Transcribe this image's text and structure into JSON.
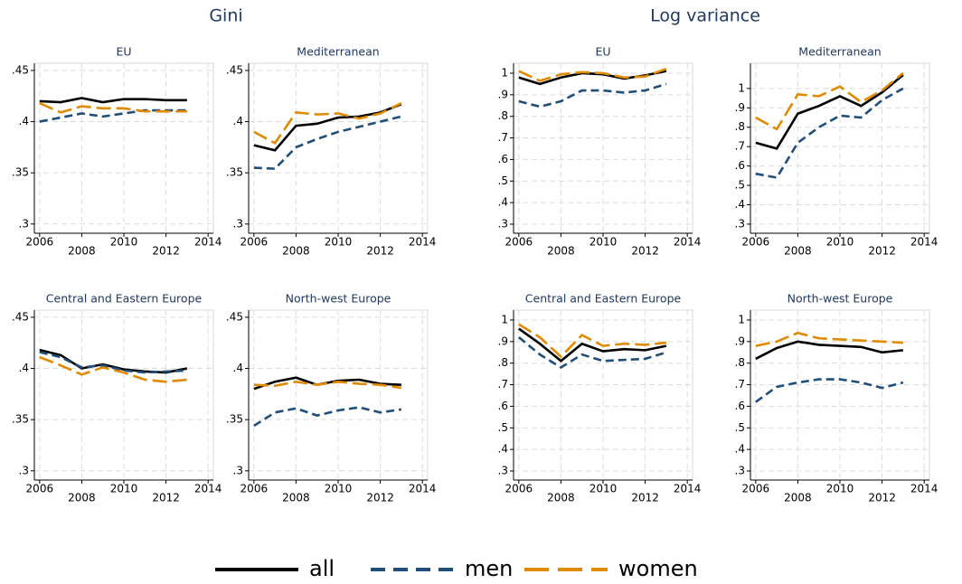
{
  "group_titles": [
    "Gini",
    "Log variance"
  ],
  "chart_data": [
    {
      "type": "line",
      "title": "EU",
      "x": [
        2006,
        2007,
        2008,
        2009,
        2010,
        2011,
        2012,
        2013
      ],
      "xlim": [
        2005.75,
        2014.25
      ],
      "xticks": [
        2006,
        2008,
        2010,
        2012,
        2014
      ],
      "ylim": [
        0.291,
        0.457
      ],
      "yticks": [
        {
          "value": 0.3,
          "label": ".3"
        },
        {
          "value": 0.35,
          "label": ".35"
        },
        {
          "value": 0.4,
          "label": ".4"
        },
        {
          "value": 0.45,
          "label": ".45"
        }
      ],
      "grid": true,
      "series": [
        {
          "name": "all",
          "color": "#000000",
          "values": [
            0.42,
            0.419,
            0.423,
            0.419,
            0.422,
            0.422,
            0.421,
            0.421
          ]
        },
        {
          "name": "men",
          "color": "#1f4e79",
          "values": [
            0.4,
            0.404,
            0.408,
            0.405,
            0.408,
            0.411,
            0.411,
            0.411
          ]
        },
        {
          "name": "women",
          "color": "#e08a00",
          "values": [
            0.418,
            0.409,
            0.415,
            0.413,
            0.413,
            0.41,
            0.41,
            0.41
          ]
        }
      ]
    },
    {
      "type": "line",
      "title": "Mediterranean",
      "x": [
        2006,
        2007,
        2008,
        2009,
        2010,
        2011,
        2012,
        2013
      ],
      "xlim": [
        2005.75,
        2014.25
      ],
      "xticks": [
        2006,
        2008,
        2010,
        2012,
        2014
      ],
      "ylim": [
        0.291,
        0.457
      ],
      "yticks": [
        {
          "value": 0.3,
          "label": ".3"
        },
        {
          "value": 0.35,
          "label": ".35"
        },
        {
          "value": 0.4,
          "label": ".4"
        },
        {
          "value": 0.45,
          "label": ".45"
        }
      ],
      "grid": true,
      "series": [
        {
          "name": "all",
          "color": "#000000",
          "values": [
            0.377,
            0.372,
            0.396,
            0.398,
            0.404,
            0.405,
            0.409,
            0.417
          ]
        },
        {
          "name": "men",
          "color": "#1f4e79",
          "values": [
            0.355,
            0.354,
            0.375,
            0.383,
            0.39,
            0.395,
            0.4,
            0.405
          ]
        },
        {
          "name": "women",
          "color": "#e08a00",
          "values": [
            0.39,
            0.379,
            0.409,
            0.407,
            0.408,
            0.403,
            0.408,
            0.418
          ]
        }
      ]
    },
    {
      "type": "line",
      "title": "Central and Eastern Europe",
      "x": [
        2006,
        2007,
        2008,
        2009,
        2010,
        2011,
        2012,
        2013
      ],
      "xlim": [
        2005.75,
        2014.25
      ],
      "xticks": [
        2006,
        2008,
        2010,
        2012,
        2014
      ],
      "ylim": [
        0.291,
        0.457
      ],
      "yticks": [
        {
          "value": 0.3,
          "label": ".3"
        },
        {
          "value": 0.35,
          "label": ".35"
        },
        {
          "value": 0.4,
          "label": ".4"
        },
        {
          "value": 0.45,
          "label": ".45"
        }
      ],
      "grid": true,
      "series": [
        {
          "name": "all",
          "color": "#000000",
          "values": [
            0.418,
            0.413,
            0.4,
            0.404,
            0.399,
            0.397,
            0.396,
            0.4
          ]
        },
        {
          "name": "men",
          "color": "#1f4e79",
          "values": [
            0.416,
            0.411,
            0.401,
            0.403,
            0.398,
            0.396,
            0.397,
            0.398
          ]
        },
        {
          "name": "women",
          "color": "#e08a00",
          "values": [
            0.411,
            0.403,
            0.394,
            0.401,
            0.396,
            0.389,
            0.387,
            0.389
          ]
        }
      ]
    },
    {
      "type": "line",
      "title": "North-west Europe",
      "x": [
        2006,
        2007,
        2008,
        2009,
        2010,
        2011,
        2012,
        2013
      ],
      "xlim": [
        2005.75,
        2014.25
      ],
      "xticks": [
        2006,
        2008,
        2010,
        2012,
        2014
      ],
      "ylim": [
        0.291,
        0.457
      ],
      "yticks": [
        {
          "value": 0.3,
          "label": ".3"
        },
        {
          "value": 0.35,
          "label": ".35"
        },
        {
          "value": 0.4,
          "label": ".4"
        },
        {
          "value": 0.45,
          "label": ".45"
        }
      ],
      "grid": true,
      "series": [
        {
          "name": "all",
          "color": "#000000",
          "values": [
            0.38,
            0.387,
            0.391,
            0.384,
            0.388,
            0.389,
            0.385,
            0.384
          ]
        },
        {
          "name": "men",
          "color": "#1f4e79",
          "values": [
            0.344,
            0.357,
            0.361,
            0.354,
            0.359,
            0.362,
            0.357,
            0.36
          ]
        },
        {
          "name": "women",
          "color": "#e08a00",
          "values": [
            0.384,
            0.383,
            0.387,
            0.384,
            0.387,
            0.385,
            0.384,
            0.381
          ]
        }
      ]
    },
    {
      "type": "line",
      "title": "EU",
      "x": [
        2006,
        2007,
        2008,
        2009,
        2010,
        2011,
        2012,
        2013
      ],
      "xlim": [
        2005.75,
        2014.25
      ],
      "xticks": [
        2006,
        2008,
        2010,
        2012,
        2014
      ],
      "ylim": [
        0.258,
        1.046
      ],
      "yticks": [
        {
          "value": 0.3,
          "label": ".3"
        },
        {
          "value": 0.4,
          "label": ".4"
        },
        {
          "value": 0.5,
          "label": ".5"
        },
        {
          "value": 0.6,
          "label": ".6"
        },
        {
          "value": 0.7,
          "label": ".7"
        },
        {
          "value": 0.8,
          "label": ".8"
        },
        {
          "value": 0.9,
          "label": ".9"
        },
        1
      ],
      "grid": true,
      "series": [
        {
          "name": "all",
          "color": "#000000",
          "values": [
            0.98,
            0.95,
            0.98,
            1.0,
            0.995,
            0.975,
            0.99,
            1.01
          ]
        },
        {
          "name": "men",
          "color": "#1f4e79",
          "values": [
            0.87,
            0.845,
            0.87,
            0.92,
            0.92,
            0.91,
            0.92,
            0.95
          ]
        },
        {
          "name": "women",
          "color": "#e08a00",
          "values": [
            1.01,
            0.965,
            0.995,
            1.005,
            1.0,
            0.98,
            0.985,
            1.02
          ]
        }
      ]
    },
    {
      "type": "line",
      "title": "Mediterranean",
      "x": [
        2006,
        2007,
        2008,
        2009,
        2010,
        2011,
        2012,
        2013
      ],
      "xlim": [
        2005.75,
        2014.25
      ],
      "xticks": [
        2006,
        2008,
        2010,
        2012,
        2014
      ],
      "ylim": [
        0.253,
        1.13
      ],
      "yticks": [
        {
          "value": 0.3,
          "label": ".3"
        },
        {
          "value": 0.4,
          "label": ".4"
        },
        {
          "value": 0.5,
          "label": ".5"
        },
        {
          "value": 0.6,
          "label": ".6"
        },
        {
          "value": 0.7,
          "label": ".7"
        },
        {
          "value": 0.8,
          "label": ".8"
        },
        {
          "value": 0.9,
          "label": ".9"
        },
        1
      ],
      "grid": true,
      "series": [
        {
          "name": "all",
          "color": "#000000",
          "values": [
            0.72,
            0.69,
            0.87,
            0.91,
            0.96,
            0.91,
            0.98,
            1.07
          ]
        },
        {
          "name": "men",
          "color": "#1f4e79",
          "values": [
            0.56,
            0.54,
            0.72,
            0.8,
            0.86,
            0.85,
            0.94,
            1.0
          ]
        },
        {
          "name": "women",
          "color": "#e08a00",
          "values": [
            0.85,
            0.79,
            0.97,
            0.96,
            1.01,
            0.93,
            0.99,
            1.08
          ]
        }
      ]
    },
    {
      "type": "line",
      "title": "Central and Eastern Europe",
      "x": [
        2006,
        2007,
        2008,
        2009,
        2010,
        2011,
        2012,
        2013
      ],
      "xlim": [
        2005.75,
        2014.25
      ],
      "xticks": [
        2006,
        2008,
        2010,
        2012,
        2014
      ],
      "ylim": [
        0.258,
        1.046
      ],
      "yticks": [
        {
          "value": 0.3,
          "label": ".3"
        },
        {
          "value": 0.4,
          "label": ".4"
        },
        {
          "value": 0.5,
          "label": ".5"
        },
        {
          "value": 0.6,
          "label": ".6"
        },
        {
          "value": 0.7,
          "label": ".7"
        },
        {
          "value": 0.8,
          "label": ".8"
        },
        {
          "value": 0.9,
          "label": ".9"
        },
        1
      ],
      "grid": true,
      "series": [
        {
          "name": "all",
          "color": "#000000",
          "values": [
            0.96,
            0.89,
            0.81,
            0.89,
            0.855,
            0.865,
            0.86,
            0.88
          ]
        },
        {
          "name": "men",
          "color": "#1f4e79",
          "values": [
            0.92,
            0.84,
            0.78,
            0.84,
            0.81,
            0.815,
            0.82,
            0.85
          ]
        },
        {
          "name": "women",
          "color": "#e08a00",
          "values": [
            0.98,
            0.92,
            0.83,
            0.93,
            0.88,
            0.89,
            0.885,
            0.895
          ]
        }
      ]
    },
    {
      "type": "line",
      "title": "North-west Europe",
      "x": [
        2006,
        2007,
        2008,
        2009,
        2010,
        2011,
        2012,
        2013
      ],
      "xlim": [
        2005.75,
        2014.25
      ],
      "xticks": [
        2006,
        2008,
        2010,
        2012,
        2014
      ],
      "ylim": [
        0.258,
        1.046
      ],
      "yticks": [
        {
          "value": 0.3,
          "label": ".3"
        },
        {
          "value": 0.4,
          "label": ".4"
        },
        {
          "value": 0.5,
          "label": ".5"
        },
        {
          "value": 0.6,
          "label": ".6"
        },
        {
          "value": 0.7,
          "label": ".7"
        },
        {
          "value": 0.8,
          "label": ".8"
        },
        {
          "value": 0.9,
          "label": ".9"
        },
        1
      ],
      "grid": true,
      "series": [
        {
          "name": "all",
          "color": "#000000",
          "values": [
            0.82,
            0.87,
            0.9,
            0.885,
            0.88,
            0.875,
            0.85,
            0.86
          ]
        },
        {
          "name": "men",
          "color": "#1f4e79",
          "values": [
            0.62,
            0.69,
            0.71,
            0.725,
            0.725,
            0.71,
            0.685,
            0.71
          ]
        },
        {
          "name": "women",
          "color": "#e08a00",
          "values": [
            0.88,
            0.9,
            0.94,
            0.915,
            0.91,
            0.905,
            0.9,
            0.895
          ]
        }
      ]
    }
  ]
}
